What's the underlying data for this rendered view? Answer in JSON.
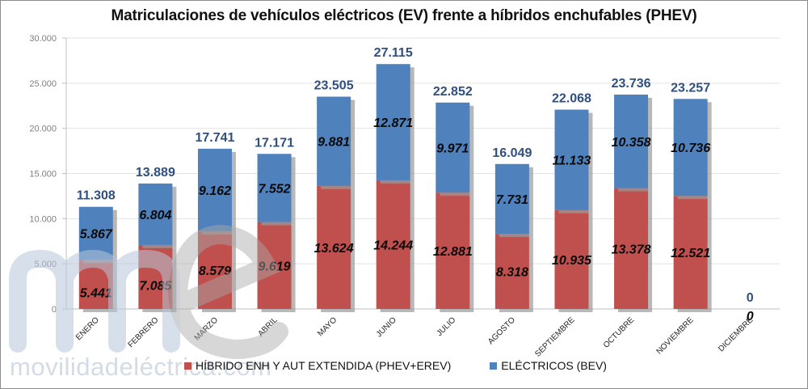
{
  "chart_data": {
    "type": "bar",
    "stacked": true,
    "title": "Matriculaciones de vehículos eléctricos (EV) frente a híbridos enchufables (PHEV)",
    "xlabel": "",
    "ylabel": "",
    "ylim": [
      0,
      30000
    ],
    "yticks": [
      0,
      5000,
      10000,
      15000,
      20000,
      25000,
      30000
    ],
    "ytick_labels": [
      "0",
      "5.000",
      "10.000",
      "15.000",
      "20.000",
      "25.000",
      "30.000"
    ],
    "grid": true,
    "legend_position": "bottom",
    "categories": [
      "ENERO",
      "FEBRERO",
      "MARZO",
      "ABRIL",
      "MAYO",
      "JUNIO",
      "JULIO",
      "AGOSTO",
      "SEPTIEMBRE",
      "OCTUBRE",
      "NOVIEMBRE",
      "DICIEMBRE"
    ],
    "series": [
      {
        "name": "HÍBRIDO ENH Y AUT EXTENDIDA (PHEV+EREV)",
        "color": "#c0504d",
        "values": [
          5441,
          7085,
          8579,
          9619,
          13624,
          14244,
          12881,
          8318,
          10935,
          13378,
          12521,
          0
        ],
        "labels": [
          "5.441",
          "7.085",
          "8.579",
          "9.619",
          "13.624",
          "14.244",
          "12.881",
          "8.318",
          "10.935",
          "13.378",
          "12.521",
          "0"
        ]
      },
      {
        "name": "ELÉCTRICOS (BEV)",
        "color": "#4f81bd",
        "values": [
          5867,
          6804,
          9162,
          7552,
          9881,
          12871,
          9971,
          7731,
          11133,
          10358,
          10736,
          0
        ],
        "labels": [
          "5.867",
          "6.804",
          "9.162",
          "7.552",
          "9.881",
          "12.871",
          "9.971",
          "7.731",
          "11.133",
          "10.358",
          "10.736",
          ""
        ]
      }
    ],
    "totals": [
      11308,
      13889,
      17741,
      17171,
      23505,
      27115,
      22852,
      16049,
      22068,
      23736,
      23257,
      0
    ],
    "total_labels": [
      "11.308",
      "13.889",
      "17.741",
      "17.171",
      "23.505",
      "27.115",
      "22.852",
      "16.049",
      "22.068",
      "23.736",
      "23.257",
      "0"
    ]
  },
  "watermark": {
    "logo_letters": "me",
    "text": "movilidadeléctrica.com"
  }
}
